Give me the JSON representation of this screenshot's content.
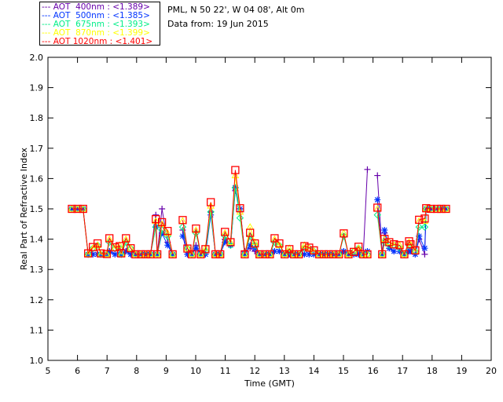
{
  "header": {
    "site": "PML, N 50 22', W 04 08', Alt 0m",
    "date": "Data from: 19 Jun 2015"
  },
  "chart_data": {
    "type": "line",
    "title": "",
    "xlabel": "Time (GMT)",
    "ylabel": "Real Part of Refractive Index",
    "xlim": [
      5,
      20
    ],
    "ylim": [
      1.0,
      2.0
    ],
    "xticks": [
      "5",
      "6",
      "7",
      "8",
      "9",
      "10",
      "11",
      "12",
      "13",
      "14",
      "15",
      "16",
      "17",
      "18",
      "19",
      "20"
    ],
    "yticks": [
      "1.0",
      "1.1",
      "1.2",
      "1.3",
      "1.4",
      "1.5",
      "1.6",
      "1.7",
      "1.8",
      "1.9",
      "2.0"
    ],
    "legend_position": "top-left-outside",
    "x": [
      5.81,
      6.0,
      6.19,
      6.36,
      6.52,
      6.68,
      6.79,
      6.99,
      7.08,
      7.27,
      7.43,
      7.48,
      7.64,
      7.8,
      7.96,
      8.15,
      8.31,
      8.47,
      8.65,
      8.7,
      8.86,
      9.05,
      9.22,
      9.56,
      9.72,
      9.87,
      10.01,
      10.17,
      10.33,
      10.51,
      10.67,
      10.83,
      10.99,
      11.18,
      11.34,
      11.5,
      11.66,
      11.84,
      12.0,
      12.16,
      12.35,
      12.51,
      12.67,
      12.83,
      13.01,
      13.17,
      13.33,
      13.49,
      13.68,
      13.84,
      14.0,
      14.18,
      14.34,
      14.5,
      14.66,
      14.85,
      15.01,
      15.17,
      15.35,
      15.51,
      15.67,
      15.81,
      16.15,
      16.31,
      16.39,
      16.55,
      16.71,
      16.9,
      17.06,
      17.22,
      17.27,
      17.43,
      17.56,
      17.75,
      17.8,
      17.96,
      18.17,
      18.31,
      18.47
    ],
    "series": [
      {
        "name": "AOT  400nm",
        "mean_label": "<1.389>",
        "color": "#6600aa",
        "marker": "plus",
        "values": [
          1.5,
          1.5,
          1.5,
          1.35,
          1.35,
          1.35,
          1.35,
          1.35,
          1.36,
          1.35,
          1.35,
          1.35,
          1.36,
          1.35,
          1.35,
          1.35,
          1.35,
          1.35,
          1.48,
          1.35,
          1.5,
          1.39,
          1.35,
          1.43,
          1.35,
          1.35,
          1.38,
          1.35,
          1.35,
          1.49,
          1.35,
          1.35,
          1.4,
          1.38,
          1.56,
          1.5,
          1.36,
          1.37,
          1.36,
          1.35,
          1.35,
          1.35,
          1.36,
          1.36,
          1.35,
          1.35,
          1.35,
          1.35,
          1.35,
          1.35,
          1.35,
          1.35,
          1.35,
          1.35,
          1.35,
          1.35,
          1.36,
          1.35,
          1.35,
          1.35,
          1.35,
          1.63,
          1.61,
          1.35,
          1.42,
          1.37,
          1.36,
          1.36,
          1.35,
          1.36,
          1.36,
          1.35,
          1.4,
          1.35,
          1.5,
          1.5,
          1.5,
          1.5,
          1.5
        ]
      },
      {
        "name": "AOT  500nm",
        "mean_label": "<1.385>",
        "color": "#0033ff",
        "marker": "asterisk",
        "values": [
          1.5,
          1.5,
          1.5,
          1.35,
          1.35,
          1.35,
          1.35,
          1.35,
          1.36,
          1.35,
          1.35,
          1.35,
          1.36,
          1.35,
          1.35,
          1.35,
          1.35,
          1.35,
          1.44,
          1.35,
          1.42,
          1.38,
          1.35,
          1.41,
          1.35,
          1.35,
          1.37,
          1.35,
          1.35,
          1.48,
          1.35,
          1.35,
          1.39,
          1.38,
          1.57,
          1.5,
          1.35,
          1.38,
          1.37,
          1.35,
          1.35,
          1.35,
          1.36,
          1.36,
          1.35,
          1.35,
          1.35,
          1.35,
          1.35,
          1.35,
          1.35,
          1.35,
          1.35,
          1.35,
          1.35,
          1.35,
          1.36,
          1.35,
          1.35,
          1.35,
          1.35,
          1.36,
          1.53,
          1.35,
          1.43,
          1.37,
          1.36,
          1.36,
          1.35,
          1.36,
          1.36,
          1.35,
          1.41,
          1.37,
          1.5,
          1.5,
          1.5,
          1.5,
          1.5
        ]
      },
      {
        "name": "AOT  675nm",
        "mean_label": "<1.393>",
        "color": "#00ee88",
        "marker": "diamond",
        "values": [
          1.5,
          1.5,
          1.5,
          1.35,
          1.37,
          1.38,
          1.35,
          1.35,
          1.39,
          1.37,
          1.37,
          1.35,
          1.39,
          1.37,
          1.35,
          1.35,
          1.35,
          1.35,
          1.44,
          1.35,
          1.43,
          1.41,
          1.35,
          1.44,
          1.37,
          1.35,
          1.42,
          1.35,
          1.36,
          1.49,
          1.35,
          1.35,
          1.41,
          1.38,
          1.57,
          1.47,
          1.35,
          1.41,
          1.38,
          1.35,
          1.35,
          1.35,
          1.39,
          1.38,
          1.35,
          1.36,
          1.35,
          1.35,
          1.37,
          1.37,
          1.36,
          1.35,
          1.35,
          1.35,
          1.35,
          1.35,
          1.41,
          1.35,
          1.36,
          1.37,
          1.35,
          1.35,
          1.48,
          1.35,
          1.39,
          1.38,
          1.38,
          1.37,
          1.35,
          1.38,
          1.38,
          1.36,
          1.44,
          1.44,
          1.5,
          1.5,
          1.5,
          1.5,
          1.5
        ]
      },
      {
        "name": "AOT  870nm",
        "mean_label": "<1.399>",
        "color": "#ffff00",
        "marker": "triangle",
        "values": [
          1.5,
          1.5,
          1.5,
          1.35,
          1.37,
          1.38,
          1.35,
          1.35,
          1.4,
          1.37,
          1.38,
          1.35,
          1.4,
          1.37,
          1.35,
          1.35,
          1.35,
          1.35,
          1.46,
          1.35,
          1.45,
          1.42,
          1.35,
          1.46,
          1.37,
          1.35,
          1.43,
          1.35,
          1.37,
          1.51,
          1.35,
          1.35,
          1.42,
          1.39,
          1.61,
          1.49,
          1.35,
          1.44,
          1.39,
          1.35,
          1.35,
          1.35,
          1.4,
          1.38,
          1.35,
          1.37,
          1.35,
          1.35,
          1.38,
          1.37,
          1.36,
          1.35,
          1.35,
          1.35,
          1.35,
          1.35,
          1.42,
          1.35,
          1.36,
          1.37,
          1.35,
          1.35,
          1.5,
          1.35,
          1.4,
          1.39,
          1.38,
          1.38,
          1.35,
          1.39,
          1.38,
          1.36,
          1.46,
          1.46,
          1.5,
          1.5,
          1.5,
          1.5,
          1.5
        ]
      },
      {
        "name": "AOT 1020nm",
        "mean_label": "<1.401>",
        "color": "#ff0000",
        "marker": "square",
        "values": [
          1.5,
          1.5,
          1.5,
          1.353,
          1.374,
          1.386,
          1.353,
          1.351,
          1.403,
          1.373,
          1.377,
          1.353,
          1.403,
          1.37,
          1.35,
          1.35,
          1.35,
          1.35,
          1.466,
          1.35,
          1.456,
          1.427,
          1.35,
          1.463,
          1.369,
          1.35,
          1.435,
          1.35,
          1.367,
          1.522,
          1.35,
          1.35,
          1.424,
          1.39,
          1.628,
          1.502,
          1.35,
          1.421,
          1.386,
          1.35,
          1.35,
          1.35,
          1.403,
          1.386,
          1.35,
          1.367,
          1.35,
          1.35,
          1.377,
          1.372,
          1.363,
          1.35,
          1.35,
          1.35,
          1.35,
          1.35,
          1.419,
          1.35,
          1.358,
          1.375,
          1.35,
          1.35,
          1.504,
          1.35,
          1.401,
          1.39,
          1.383,
          1.38,
          1.35,
          1.393,
          1.383,
          1.363,
          1.464,
          1.468,
          1.502,
          1.5,
          1.5,
          1.5,
          1.5
        ]
      }
    ]
  }
}
